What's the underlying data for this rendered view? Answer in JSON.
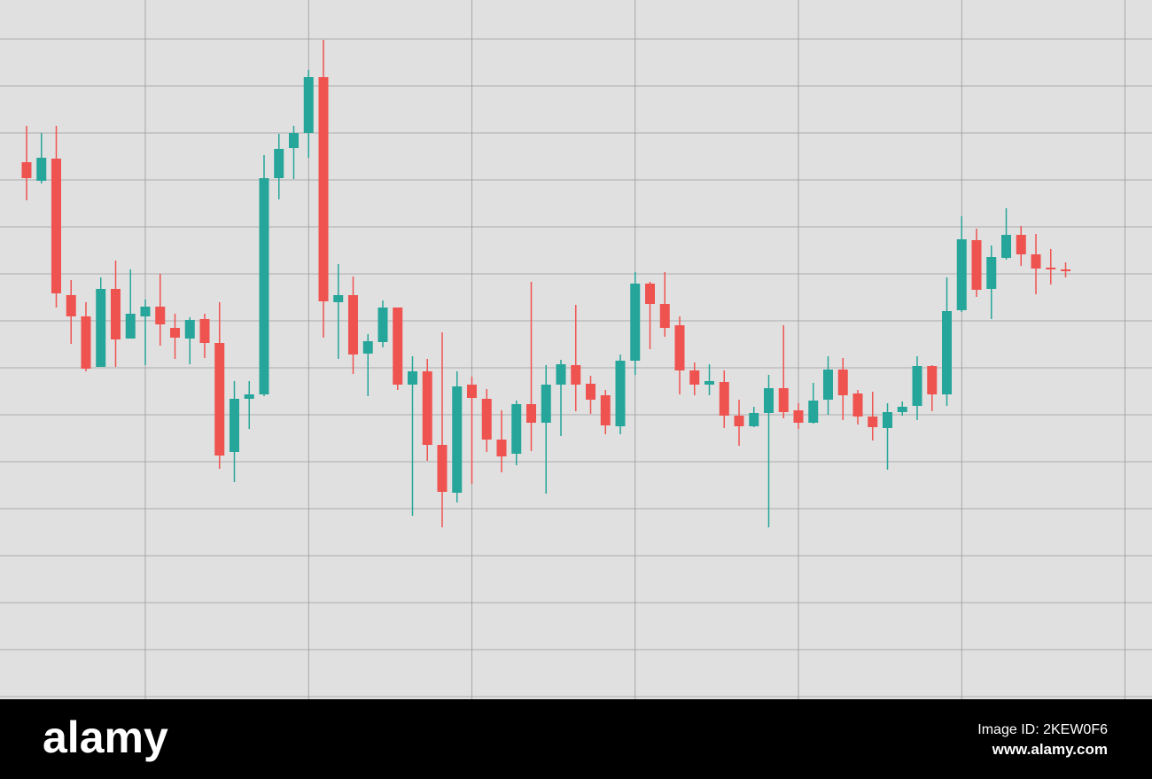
{
  "chart_data": {
    "type": "candlestick",
    "x": [
      0,
      1,
      2,
      3,
      4,
      5,
      6,
      7,
      8,
      9,
      10,
      11,
      12,
      13,
      14,
      15,
      16,
      17,
      18,
      19,
      20,
      21,
      22,
      23,
      24,
      25,
      26,
      27,
      28,
      29,
      30,
      31,
      32,
      33,
      34,
      35,
      36,
      37,
      38,
      39,
      40,
      41,
      42,
      43,
      44,
      45,
      46,
      47,
      48,
      49,
      50,
      51,
      52,
      53,
      54,
      55,
      56,
      57,
      58,
      59,
      60,
      61,
      62,
      63,
      64,
      65,
      66,
      67,
      68,
      69,
      70
    ],
    "open": [
      603,
      582,
      607,
      453,
      429,
      372,
      460,
      404,
      429,
      440,
      416,
      404,
      426,
      399,
      276,
      336,
      341,
      585,
      619,
      636,
      699,
      445,
      453,
      387,
      400,
      439,
      352,
      367,
      284,
      230,
      352,
      336,
      290,
      274,
      330,
      309,
      352,
      374,
      353,
      340,
      305,
      379,
      466,
      443,
      419,
      368,
      352,
      355,
      317,
      305,
      320,
      348,
      323,
      309,
      335,
      369,
      342,
      316,
      303,
      321,
      328,
      373,
      341,
      436,
      515,
      460,
      495,
      521,
      499,
      484,
      482
    ],
    "high": [
      644,
      636,
      644,
      470,
      445,
      473,
      492,
      482,
      448,
      477,
      432,
      428,
      432,
      445,
      356,
      356,
      611,
      635,
      644,
      707,
      741,
      488,
      474,
      409,
      447,
      439,
      384,
      381,
      411,
      367,
      361,
      347,
      323,
      334,
      468,
      374,
      380,
      442,
      362,
      346,
      386,
      479,
      468,
      479,
      429,
      377,
      375,
      368,
      335,
      327,
      363,
      419,
      331,
      354,
      384,
      382,
      346,
      344,
      331,
      333,
      384,
      374,
      473,
      542,
      528,
      509,
      551,
      531,
      522,
      505,
      490
    ],
    "low": [
      560,
      579,
      439,
      398,
      367,
      372,
      372,
      404,
      374,
      396,
      381,
      375,
      382,
      257,
      242,
      302,
      339,
      561,
      584,
      608,
      405,
      381,
      364,
      339,
      394,
      346,
      204,
      266,
      191,
      219,
      240,
      276,
      253,
      261,
      277,
      229,
      294,
      322,
      319,
      296,
      296,
      363,
      392,
      406,
      341,
      340,
      340,
      303,
      283,
      304,
      191,
      314,
      302,
      308,
      318,
      312,
      307,
      289,
      256,
      317,
      312,
      322,
      328,
      434,
      451,
      426,
      493,
      486,
      454,
      465,
      473
    ],
    "close": [
      585,
      608,
      455,
      429,
      370,
      460,
      403,
      432,
      440,
      420,
      405,
      425,
      399,
      272,
      336,
      341,
      585,
      618,
      636,
      699,
      446,
      453,
      386,
      401,
      439,
      352,
      367,
      284,
      231,
      350,
      337,
      290,
      271,
      330,
      309,
      352,
      375,
      352,
      335,
      306,
      379,
      466,
      443,
      416,
      368,
      352,
      356,
      317,
      305,
      320,
      348,
      321,
      309,
      334,
      369,
      340,
      316,
      304,
      321,
      327,
      373,
      341,
      435,
      516,
      459,
      496,
      521,
      499,
      483,
      482,
      480
    ],
    "up_color": "#26a69a",
    "down_color": "#ef5350",
    "xlim": [
      -1.79,
      75.82
    ],
    "ylim": [
      0,
      795
    ],
    "xticks": [
      8,
      19,
      30,
      41,
      52,
      63,
      74
    ],
    "yticks": [
      0,
      53,
      106,
      159,
      212,
      265,
      318,
      371,
      424,
      477,
      530,
      583,
      636,
      689,
      742
    ],
    "grid": true
  },
  "footer": {
    "brand": "alamy",
    "image_id": "Image ID: 2KEW0F6",
    "url": "www.alamy.com"
  }
}
